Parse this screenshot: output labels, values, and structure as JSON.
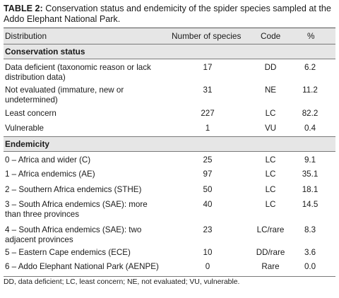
{
  "caption": {
    "label": "TABLE 2:",
    "text": " Conservation status and endemicity of the spider species sampled at the Addo Elephant National Park."
  },
  "headers": {
    "distribution": "Distribution",
    "number": "Number of species",
    "code": "Code",
    "percent": "%"
  },
  "sections": {
    "conservation": {
      "title": "Conservation status",
      "rows": [
        {
          "distribution": "Data deficient (taxonomic reason or lack distribution data)",
          "number": "17",
          "code": "DD",
          "percent": "6.2"
        },
        {
          "distribution": "Not evaluated (immature, new or undetermined)",
          "number": "31",
          "code": "NE",
          "percent": "11.2"
        },
        {
          "distribution": "Least concern",
          "number": "227",
          "code": "LC",
          "percent": "82.2"
        },
        {
          "distribution": "Vulnerable",
          "number": "1",
          "code": "VU",
          "percent": "0.4"
        }
      ]
    },
    "endemicity": {
      "title": "Endemicity",
      "rows": [
        {
          "distribution": "0 – Africa and wider (C)",
          "number": "25",
          "code": "LC",
          "percent": "9.1"
        },
        {
          "distribution": "1 – Africa endemics (AE)",
          "number": "97",
          "code": "LC",
          "percent": "35.1"
        },
        {
          "distribution": "2 – Southern Africa endemics (STHE)",
          "number": "50",
          "code": "LC",
          "percent": "18.1"
        },
        {
          "distribution": "3 – South Africa endemics (SAE): more than three provinces",
          "number": "40",
          "code": "LC",
          "percent": "14.5"
        },
        {
          "distribution": "4 – South Africa endemics (SAE): two adjacent provinces",
          "number": "23",
          "code": "LC/rare",
          "percent": "8.3"
        },
        {
          "distribution": "5 – Eastern Cape endemics (ECE)",
          "number": "10",
          "code": "DD/rare",
          "percent": "3.6"
        },
        {
          "distribution": "6 – Addo Elephant National Park (AENPE)",
          "number": "0",
          "code": "Rare",
          "percent": "0.0"
        }
      ]
    }
  },
  "footnote": "DD, data deficient; LC, least concern; NE, not evaluated; VU, vulnerable."
}
